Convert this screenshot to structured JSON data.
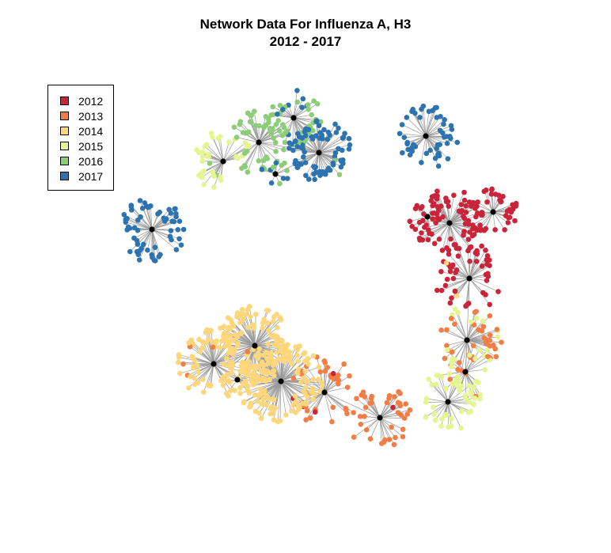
{
  "title": {
    "line1": "Network Data For Influenza A, H3",
    "line2": "2012 - 2017"
  },
  "legend": [
    {
      "label": "2012",
      "color": "#c9243a"
    },
    {
      "label": "2013",
      "color": "#f47c45"
    },
    {
      "label": "2014",
      "color": "#fed67b"
    },
    {
      "label": "2015",
      "color": "#e5f58f"
    },
    {
      "label": "2016",
      "color": "#8ccd77"
    },
    {
      "label": "2017",
      "color": "#2c73b0"
    }
  ],
  "style": {
    "edge_color": "#9a9a9a",
    "hub_color": "#000000"
  }
}
